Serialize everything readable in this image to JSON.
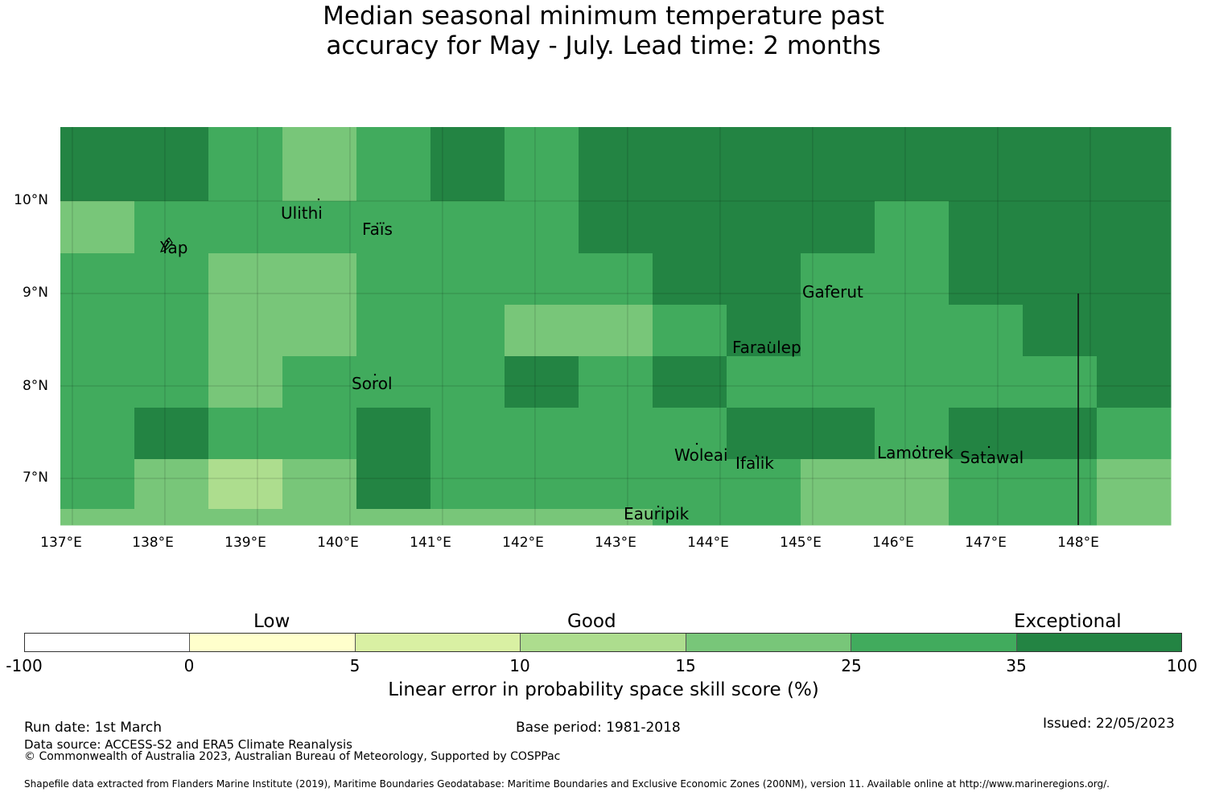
{
  "title": {
    "line1": "Median seasonal minimum temperature past",
    "line2": "accuracy for May - July. Lead time: 2 months"
  },
  "chart_data": {
    "type": "heatmap",
    "x_range": [
      137,
      149
    ],
    "y_range": [
      6.5,
      10.8
    ],
    "x_ticks": [
      "137°E",
      "138°E",
      "139°E",
      "140°E",
      "141°E",
      "142°E",
      "143°E",
      "144°E",
      "145°E",
      "146°E",
      "147°E",
      "148°E"
    ],
    "y_ticks": [
      "10°N",
      "9°N",
      "8°N",
      "7°N"
    ],
    "categories": [
      {
        "lo": -100,
        "hi": 0,
        "color": "#ffffff"
      },
      {
        "lo": 0,
        "hi": 5,
        "color": "#ffffcc"
      },
      {
        "lo": 5,
        "hi": 10,
        "color": "#d9f0a3"
      },
      {
        "lo": 10,
        "hi": 15,
        "color": "#addd8e"
      },
      {
        "lo": 15,
        "hi": 25,
        "color": "#78c679"
      },
      {
        "lo": 25,
        "hi": 35,
        "color": "#41ab5d"
      },
      {
        "lo": 35,
        "hi": 100,
        "color": "#238443"
      }
    ],
    "grid_note": "cell values are category indices (0-6) from colorbar",
    "cells": [
      [
        6,
        6,
        5,
        4,
        5,
        6,
        5,
        6,
        6,
        6,
        6,
        6,
        6,
        6,
        6
      ],
      [
        4,
        5,
        5,
        5,
        5,
        5,
        5,
        6,
        6,
        6,
        6,
        5,
        6,
        6,
        6
      ],
      [
        5,
        5,
        4,
        4,
        5,
        5,
        5,
        5,
        6,
        6,
        5,
        5,
        6,
        6,
        6
      ],
      [
        5,
        5,
        4,
        4,
        5,
        5,
        4,
        4,
        5,
        6,
        5,
        5,
        5,
        6,
        6
      ],
      [
        5,
        5,
        4,
        5,
        5,
        5,
        6,
        5,
        6,
        5,
        5,
        5,
        5,
        5,
        6
      ],
      [
        5,
        6,
        5,
        5,
        6,
        5,
        5,
        5,
        5,
        6,
        6,
        5,
        6,
        6,
        5
      ],
      [
        5,
        4,
        3,
        4,
        6,
        5,
        5,
        5,
        5,
        5,
        4,
        4,
        5,
        5,
        4
      ],
      [
        4,
        4,
        4,
        4,
        4,
        4,
        4,
        4,
        5,
        5,
        4,
        4,
        5,
        5,
        4
      ]
    ],
    "places": [
      {
        "name": "Ulithi",
        "lon": 139.8,
        "lat": 10.0
      },
      {
        "name": "Faïs",
        "lon": 140.5,
        "lat": 9.77
      },
      {
        "name": "Yap",
        "lon": 138.1,
        "lat": 9.5
      },
      {
        "name": "Gaferut",
        "lon": 145.4,
        "lat": 9.2
      },
      {
        "name": "Faraulep",
        "lon": 144.5,
        "lat": 8.6
      },
      {
        "name": "Sorol",
        "lon": 140.4,
        "lat": 8.15
      },
      {
        "name": "Woleai",
        "lon": 143.9,
        "lat": 7.4
      },
      {
        "name": "Ifalik",
        "lon": 144.45,
        "lat": 7.25
      },
      {
        "name": "Lamotrek",
        "lon": 146.3,
        "lat": 7.45
      },
      {
        "name": "Satawal",
        "lon": 147.0,
        "lat": 7.35
      },
      {
        "name": "Eauripik",
        "lon": 143.1,
        "lat": 6.7
      }
    ],
    "colorbar": {
      "ticks": [
        "-100",
        "0",
        "5",
        "10",
        "15",
        "25",
        "35",
        "100"
      ],
      "category_labels": [
        "Low",
        "Good",
        "Exceptional"
      ],
      "label": "Linear error in probability space skill score (%)"
    }
  },
  "footer": {
    "run_date": "Run date: 1st March",
    "base_period": "Base period: 1981-2018",
    "issued": "Issued: 22/05/2023",
    "data_source": "Data source: ACCESS-S2 and ERA5 Climate Reanalysis",
    "copyright": "© Commonwealth of Australia 2023, Australian Bureau of Meteorology, Supported by COSPPac",
    "shapefile": "Shapefile data extracted from Flanders Marine Institute (2019), Maritime Boundaries Geodatabase: Maritime Boundaries and Exclusive Economic Zones (200NM), version 11. Available online at http://www.marineregions.org/."
  }
}
